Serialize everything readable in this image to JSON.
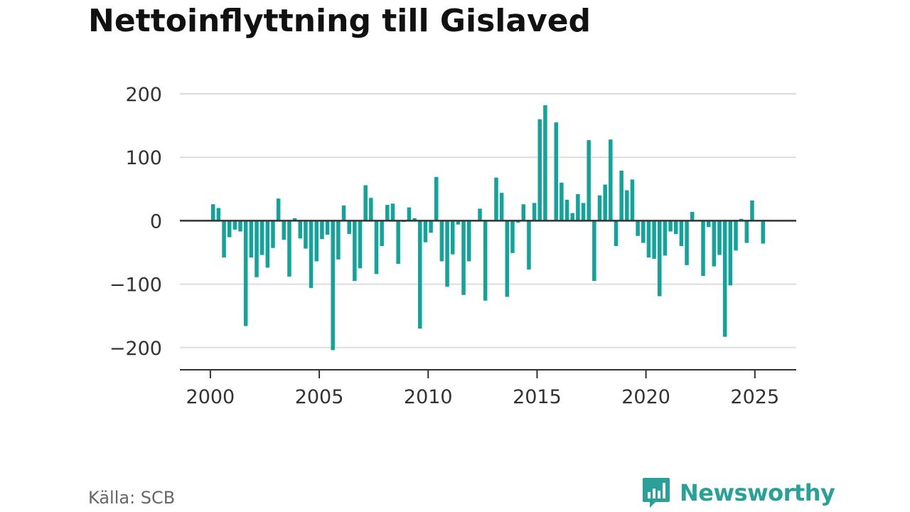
{
  "page": {
    "title": "Nettoinflyttning till Gislaved"
  },
  "footer": {
    "source": "Källa: SCB",
    "brand": "Newsworthy"
  },
  "colors": {
    "bar": "#12a49b",
    "grid": "#dddddd",
    "axis": "#333333",
    "brand": "#2aa198"
  },
  "chart_data": {
    "type": "bar",
    "title": "Nettoinflyttning till Gislaved",
    "xlabel": "",
    "ylabel": "",
    "ylim": [
      -235,
      200
    ],
    "xlim": [
      1998.6,
      2026.9
    ],
    "grid": true,
    "yticks": [
      200,
      100,
      0,
      -100,
      -200
    ],
    "ytick_labels": [
      "200",
      "100",
      "0",
      "−100",
      "−200"
    ],
    "xticks": [
      2000,
      2005,
      2010,
      2015,
      2020,
      2025
    ],
    "xtick_labels": [
      "2000",
      "2005",
      "2010",
      "2015",
      "2020",
      "2025"
    ],
    "x": [
      2000.125,
      2000.375,
      2000.625,
      2000.875,
      2001.125,
      2001.375,
      2001.625,
      2001.875,
      2002.125,
      2002.375,
      2002.625,
      2002.875,
      2003.125,
      2003.375,
      2003.625,
      2003.875,
      2004.125,
      2004.375,
      2004.625,
      2004.875,
      2005.125,
      2005.375,
      2005.625,
      2005.875,
      2006.125,
      2006.375,
      2006.625,
      2006.875,
      2007.125,
      2007.375,
      2007.625,
      2007.875,
      2008.125,
      2008.375,
      2008.625,
      2008.875,
      2009.125,
      2009.375,
      2009.625,
      2009.875,
      2010.125,
      2010.375,
      2010.625,
      2010.875,
      2011.125,
      2011.375,
      2011.625,
      2011.875,
      2012.125,
      2012.375,
      2012.625,
      2012.875,
      2013.125,
      2013.375,
      2013.625,
      2013.875,
      2014.125,
      2014.375,
      2014.625,
      2014.875,
      2015.125,
      2015.375,
      2015.625,
      2015.875,
      2016.125,
      2016.375,
      2016.625,
      2016.875,
      2017.125,
      2017.375,
      2017.625,
      2017.875,
      2018.125,
      2018.375,
      2018.625,
      2018.875,
      2019.125,
      2019.375,
      2019.625,
      2019.875,
      2020.125,
      2020.375,
      2020.625,
      2020.875,
      2021.125,
      2021.375,
      2021.625,
      2021.875,
      2022.125,
      2022.375,
      2022.625,
      2022.875,
      2023.125,
      2023.375,
      2023.625,
      2023.875,
      2024.125,
      2024.375,
      2024.625,
      2024.875,
      2025.125,
      2025.375
    ],
    "values": [
      26,
      20,
      -58,
      -26,
      -14,
      -17,
      -166,
      -58,
      -89,
      -54,
      -74,
      -43,
      35,
      -30,
      -88,
      4,
      -28,
      -44,
      -106,
      -64,
      -29,
      -22,
      -204,
      -61,
      24,
      -21,
      -95,
      -75,
      56,
      36,
      -84,
      -40,
      25,
      27,
      -68,
      -2,
      21,
      4,
      -170,
      -34,
      -19,
      69,
      -64,
      -104,
      -53,
      -6,
      -117,
      -64,
      0,
      19,
      -126,
      0,
      68,
      44,
      -120,
      -51,
      -3,
      26,
      -77,
      28,
      160,
      182,
      0,
      155,
      60,
      33,
      12,
      42,
      28,
      127,
      -95,
      40,
      57,
      128,
      -40,
      79,
      48,
      65,
      -24,
      -35,
      -58,
      -60,
      -119,
      -55,
      -17,
      -21,
      -40,
      -70,
      14,
      0,
      -87,
      -10,
      -72,
      -54,
      -183,
      -102,
      -47,
      3,
      -35,
      32,
      0,
      -36
    ]
  }
}
